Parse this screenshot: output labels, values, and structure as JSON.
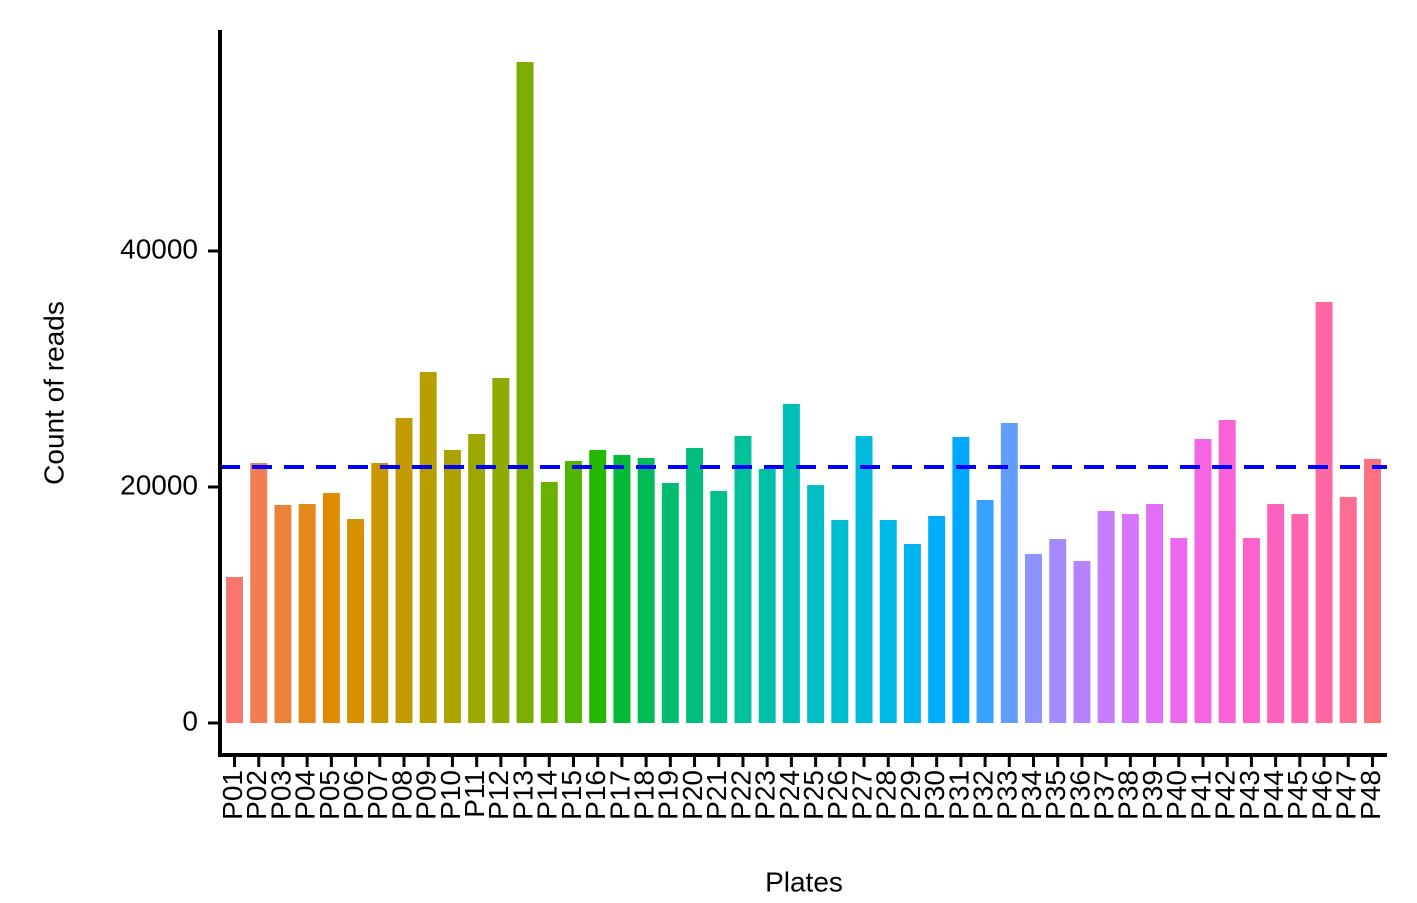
{
  "chart_data": {
    "type": "bar",
    "x_label": "Plates",
    "y_label": "Count of reads",
    "categories": [
      "P01",
      "P02",
      "P03",
      "P04",
      "P05",
      "P06",
      "P07",
      "P08",
      "P09",
      "P10",
      "P11",
      "P12",
      "P13",
      "P14",
      "P15",
      "P16",
      "P17",
      "P18",
      "P19",
      "P20",
      "P21",
      "P22",
      "P23",
      "P24",
      "P25",
      "P26",
      "P27",
      "P28",
      "P29",
      "P30",
      "P31",
      "P32",
      "P33",
      "P34",
      "P35",
      "P36",
      "P37",
      "P38",
      "P39",
      "P40",
      "P41",
      "P42",
      "P43",
      "P44",
      "P45",
      "P46",
      "P47",
      "P48"
    ],
    "values": [
      12373,
      22034,
      18475,
      18559,
      19492,
      17288,
      22034,
      25847,
      29746,
      23136,
      24492,
      29237,
      56017,
      20424,
      22203,
      23136,
      22712,
      22458,
      20339,
      23305,
      19661,
      24322,
      21525,
      27034,
      20169,
      17203,
      24322,
      17203,
      15169,
      17542,
      24237,
      18898,
      25424,
      14322,
      15593,
      13729,
      17966,
      17712,
      18559,
      15678,
      24068,
      25678,
      15678,
      18559,
      17712,
      35678,
      19153,
      22373
    ],
    "colors": [
      "#F8766D",
      "#F27D52",
      "#EC8239",
      "#E5871B",
      "#DE8C00",
      "#D59100",
      "#CC9600",
      "#C29A00",
      "#B79F00",
      "#AAA300",
      "#9CA700",
      "#8DAB00",
      "#7CAE00",
      "#68B200",
      "#4FB500",
      "#25B800",
      "#00BA38",
      "#00BC56",
      "#00BD6F",
      "#00BF7D",
      "#00C08B",
      "#00C19A",
      "#00C1A8",
      "#00C0B6",
      "#00BFC4",
      "#00BDD1",
      "#00BBDC",
      "#00B8E7",
      "#00B4F0",
      "#00AEFA",
      "#00A8FF",
      "#35A2FF",
      "#619CFF",
      "#8D93FF",
      "#A38AFF",
      "#B682FF",
      "#C77CFF",
      "#D675FE",
      "#E26EF7",
      "#EC69EE",
      "#F564E3",
      "#FB61D7",
      "#FE61CB",
      "#FF62BE",
      "#FF64B0",
      "#FF67A2",
      "#FD6C93",
      "#FC7080"
    ],
    "hline": {
      "value": 21695,
      "color": "#0000FF"
    },
    "ylim": [
      -2712,
      58729
    ],
    "yticks": [
      0,
      20000,
      40000
    ]
  }
}
